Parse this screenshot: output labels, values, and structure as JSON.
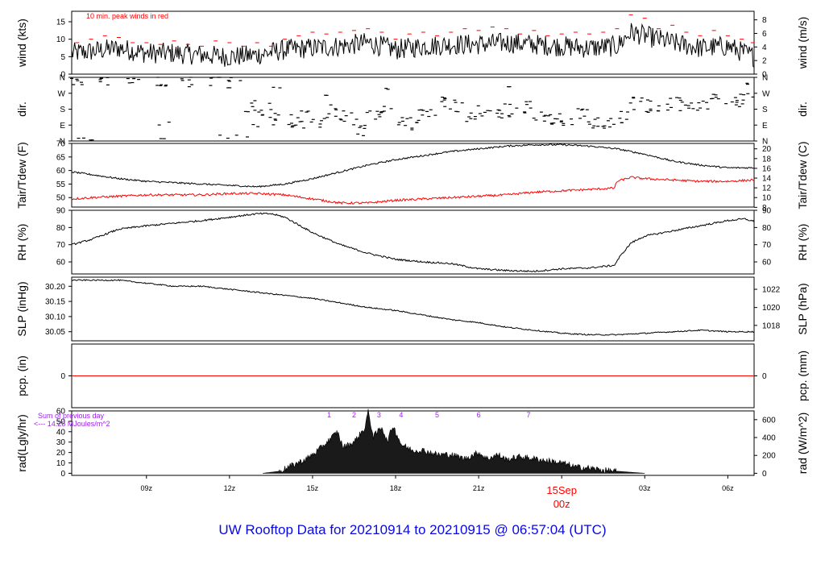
{
  "caption": "UW Rooftop Data for 20210914  to  20210915 @ 06:57:04  (UTC)",
  "colors": {
    "trace": "#000000",
    "peak": "#ff0000",
    "dew": "#ff0000",
    "purple": "#a020f0",
    "caption": "#0a0ae0"
  },
  "chart_data": {
    "type": "line",
    "x_unit": "hours UTC since 20210914 00z",
    "x_range": [
      6.3,
      30.95
    ],
    "x_ticks": [
      {
        "x": 9,
        "label": "09z"
      },
      {
        "x": 12,
        "label": "12z"
      },
      {
        "x": 15,
        "label": "15z"
      },
      {
        "x": 18,
        "label": "18z"
      },
      {
        "x": 21,
        "label": "21z"
      },
      {
        "x": 24,
        "label": "00z",
        "day_label": "15Sep"
      },
      {
        "x": 27,
        "label": "03z"
      },
      {
        "x": 30,
        "label": "06z"
      }
    ],
    "panels": [
      {
        "id": "wind",
        "ylabel": "wind (kts)",
        "ylabel_right": "wind (m/s)",
        "ylim": [
          0,
          18
        ],
        "yticks": [
          0,
          5,
          10,
          15
        ],
        "right_ticks": [
          {
            "v": 0,
            "label": "0"
          },
          {
            "v": 3.89,
            "label": "2"
          },
          {
            "v": 7.78,
            "label": "4"
          },
          {
            "v": 11.66,
            "label": "6"
          },
          {
            "v": 15.55,
            "label": "8"
          }
        ],
        "annotation": "10 min. peak winds in red",
        "series": [
          {
            "kind": "line",
            "color": "#000000",
            "x": [
              6.3,
              7,
              8,
              9,
              10,
              11,
              12,
              13,
              14,
              15,
              16,
              17,
              18,
              19,
              20,
              21,
              22,
              23,
              24,
              25,
              26,
              26.5,
              27,
              28,
              29,
              30,
              30.95
            ],
            "y": [
              6,
              6.5,
              7.5,
              6,
              6,
              5.5,
              5,
              5.5,
              7,
              7.5,
              8,
              9,
              7,
              8,
              8.5,
              8.5,
              9,
              8.5,
              8,
              7.5,
              8,
              12,
              11,
              9,
              7.5,
              8,
              5
            ],
            "noise": 3
          },
          {
            "kind": "dash",
            "color": "#ff0000",
            "name": "10 min. peak winds",
            "x": [
              6.5,
              7,
              7.5,
              8,
              8.5,
              9,
              9.5,
              10,
              10.5,
              11,
              11.5,
              12,
              12.5,
              13,
              13.5,
              14,
              14.5,
              15,
              15.5,
              16,
              16.5,
              17,
              17.5,
              18,
              18.5,
              19,
              19.5,
              20,
              20.5,
              21,
              21.5,
              22,
              22.5,
              23,
              23.5,
              24,
              24.5,
              25,
              25.5,
              26,
              26.5,
              27,
              27.5,
              28,
              28.5,
              29,
              29.5,
              30,
              30.5,
              30.9
            ],
            "y": [
              9,
              10,
              11,
              10.5,
              9,
              9,
              8.5,
              9.5,
              8.5,
              8,
              9.5,
              9,
              8,
              9,
              8,
              10,
              11,
              12,
              11.5,
              12,
              12.5,
              13,
              12,
              10,
              11.5,
              12,
              11,
              12,
              13,
              12.5,
              13.5,
              13,
              11.5,
              12.5,
              11,
              11.5,
              12,
              11.5,
              12,
              13,
              17,
              16,
              13,
              14,
              12,
              11,
              12.5,
              11,
              10,
              9
            ]
          }
        ]
      },
      {
        "id": "dir",
        "ylabel": "dir.",
        "ylabel_right": "dir.",
        "ylim": [
          0,
          360
        ],
        "yticks_labeled": [
          {
            "v": 0,
            "label": "N"
          },
          {
            "v": 90,
            "label": "E"
          },
          {
            "v": 180,
            "label": "S"
          },
          {
            "v": 270,
            "label": "W"
          },
          {
            "v": 360,
            "label": "N"
          }
        ],
        "series": [
          {
            "kind": "scatter",
            "color": "#000000",
            "x": [
              6.5,
              7.5,
              8.5,
              9.5,
              10.5,
              11.5,
              12.2,
              12.8,
              13.3,
              13.7,
              14.2,
              14.7,
              15.2,
              15.7,
              16.2,
              16.7,
              17.2,
              17.7,
              18.2,
              18.7,
              19.2,
              19.7,
              20.2,
              20.7,
              21.2,
              21.7,
              22.2,
              22.7,
              23.2,
              23.7,
              24.2,
              24.7,
              25.2,
              25.7,
              26.2,
              26.7,
              27.2,
              27.7,
              28.2,
              28.7,
              29.2,
              29.7,
              30.2,
              30.7
            ],
            "y": [
              350,
              355,
              345,
              350,
              345,
              350,
              340,
              200,
              180,
              120,
              110,
              135,
              100,
              170,
              150,
              110,
              130,
              160,
              95,
              140,
              170,
              230,
              205,
              125,
              165,
              150,
              175,
              190,
              150,
              135,
              110,
              145,
              100,
              90,
              130,
              210,
              200,
              205,
              210,
              200,
              215,
              230,
              220,
              235
            ],
            "noise": 40
          },
          {
            "kind": "scatter",
            "color": "#000000",
            "x": [
              6.6,
              7.2,
              9.5,
              9.7,
              11.8,
              12.5,
              13.1,
              13.6,
              14.5,
              15.5,
              16.8,
              17.8,
              18.6,
              22.3,
              23.6,
              25.4,
              30.5
            ],
            "y": [
              10,
              15,
              20,
              100,
              25,
              30,
              90,
              310,
              70,
              260,
              40,
              300,
              70,
              300,
              130,
              80,
              320
            ],
            "noise": 10
          }
        ]
      },
      {
        "id": "temp",
        "ylabel": "Tair/Tdew (F)",
        "ylabel_right": "Tair/Tdew (C)",
        "ylim": [
          46.5,
          70
        ],
        "yticks": [
          50,
          55,
          60,
          65,
          70
        ],
        "right_ticks": [
          {
            "v": 46.4,
            "label": "8"
          },
          {
            "v": 50,
            "label": "10"
          },
          {
            "v": 53.6,
            "label": "12"
          },
          {
            "v": 57.2,
            "label": "14"
          },
          {
            "v": 60.8,
            "label": "16"
          },
          {
            "v": 64.4,
            "label": "18"
          },
          {
            "v": 68,
            "label": "20"
          }
        ],
        "series": [
          {
            "kind": "line",
            "color": "#000000",
            "name": "Tair",
            "x": [
              6.3,
              7,
              8,
              9,
              10,
              11,
              12,
              13,
              14,
              15,
              16,
              17,
              18,
              19,
              20,
              21,
              22,
              23,
              24,
              25,
              26,
              27,
              28,
              29,
              30,
              30.95
            ],
            "y": [
              59.5,
              58.5,
              57,
              56,
              55.5,
              55,
              54.5,
              54,
              55,
              57,
              59.5,
              62,
              64,
              65.5,
              67,
              68,
              69,
              69.5,
              69.5,
              69,
              68,
              66,
              63.5,
              62,
              61,
              61
            ],
            "noise": 0.3
          },
          {
            "kind": "line",
            "color": "#ff0000",
            "name": "Tdew",
            "x": [
              6.3,
              7,
              8,
              9,
              10,
              11,
              12,
              13,
              14,
              15,
              16,
              17,
              18,
              19,
              20,
              21,
              22,
              23,
              24,
              25,
              25.9,
              26,
              26.5,
              27,
              28,
              29,
              30,
              30.95
            ],
            "y": [
              49.5,
              50,
              50.5,
              51,
              51,
              51,
              51.5,
              51.5,
              51,
              49.5,
              48,
              48,
              49,
              49.5,
              50,
              50.5,
              51,
              52,
              52.5,
              53,
              53.5,
              56,
              57.5,
              57,
              56.5,
              56,
              56,
              56.5
            ],
            "noise": 0.4
          }
        ]
      },
      {
        "id": "rh",
        "ylabel": "RH (%)",
        "ylabel_right": "RH (%)",
        "ylim": [
          53,
          90
        ],
        "yticks": [
          60,
          70,
          80,
          90
        ],
        "right_ticks": [
          {
            "v": 60,
            "label": "60"
          },
          {
            "v": 70,
            "label": "70"
          },
          {
            "v": 80,
            "label": "80"
          },
          {
            "v": 90,
            "label": "90"
          }
        ],
        "series": [
          {
            "kind": "line",
            "color": "#000000",
            "x": [
              6.3,
              7,
              8,
              9,
              10,
              11,
              12,
              13,
              13.5,
              14,
              15,
              16,
              17,
              18,
              19,
              20,
              21,
              22,
              23,
              24,
              25,
              25.9,
              26.1,
              26.5,
              27,
              28,
              29,
              30,
              30.6,
              30.95
            ],
            "y": [
              70,
              73,
              79,
              81,
              82.5,
              84,
              86,
              88,
              88,
              86,
              77,
              70,
              65,
              61.5,
              60,
              59,
              56,
              55,
              54.5,
              56,
              56.5,
              58,
              63,
              71,
              75,
              78,
              81,
              84,
              85,
              83.5
            ],
            "noise": 0.5
          }
        ]
      },
      {
        "id": "slp",
        "ylabel": "SLP (inHg)",
        "ylabel_right": "SLP (hPa)",
        "ylim": [
          30.02,
          30.23
        ],
        "yticks": [
          30.05,
          30.1,
          30.15,
          30.2
        ],
        "right_ticks": [
          {
            "v": 30.0709,
            "label": "1018"
          },
          {
            "v": 30.1299,
            "label": "1020"
          },
          {
            "v": 30.19,
            "label": "1022"
          }
        ],
        "series": [
          {
            "kind": "line",
            "color": "#000000",
            "x": [
              6.3,
              7,
              8,
              9,
              10,
              11,
              12,
              13,
              14,
              15,
              16,
              17,
              18,
              19,
              20,
              21,
              22,
              23,
              24,
              25,
              26,
              27,
              28,
              29,
              30,
              30.95
            ],
            "y": [
              30.22,
              30.22,
              30.22,
              30.21,
              30.2,
              30.2,
              30.19,
              30.18,
              30.17,
              30.16,
              30.145,
              30.13,
              30.12,
              30.105,
              30.09,
              30.08,
              30.065,
              30.055,
              30.045,
              30.04,
              30.04,
              30.045,
              30.05,
              30.055,
              30.05,
              30.05
            ],
            "noise": 0.002
          }
        ]
      },
      {
        "id": "pcp",
        "ylabel": "pcp. (in)",
        "ylabel_right": "pcp. (mm)",
        "ylim": [
          -0.5,
          0.5
        ],
        "yticks": [
          0
        ],
        "right_ticks": [
          {
            "v": 0,
            "label": "0"
          }
        ],
        "series": [
          {
            "kind": "line",
            "color": "#ff0000",
            "x": [
              6.3,
              30.95
            ],
            "y": [
              0,
              0
            ]
          }
        ]
      },
      {
        "id": "rad",
        "ylabel": "rad(Lgly/hr)",
        "ylabel_right": "rad (W/m^2)",
        "ylim": [
          -2,
          60
        ],
        "yticks": [
          0,
          10,
          20,
          30,
          40,
          50,
          60
        ],
        "right_ticks": [
          {
            "v": 0,
            "label": "0"
          },
          {
            "v": 17.2,
            "label": "200"
          },
          {
            "v": 34.4,
            "label": "400"
          },
          {
            "v": 51.6,
            "label": "600"
          }
        ],
        "annotation_lines": [
          "Sum of previous day",
          "<--- 14.26 MJoules/m^2"
        ],
        "hour_labels": [
          {
            "x": 15.6,
            "label": "1"
          },
          {
            "x": 16.5,
            "label": "2"
          },
          {
            "x": 17.4,
            "label": "3"
          },
          {
            "x": 18.2,
            "label": "4"
          },
          {
            "x": 19.5,
            "label": "5"
          },
          {
            "x": 21.0,
            "label": "6"
          },
          {
            "x": 22.8,
            "label": "7"
          }
        ],
        "series": [
          {
            "kind": "area",
            "color": "#000000",
            "x": [
              13.2,
              13.8,
              14.3,
              14.8,
              15.2,
              15.6,
              15.9,
              16.1,
              16.5,
              16.9,
              17.0,
              17.2,
              17.5,
              17.7,
              17.9,
              18.2,
              18.6,
              19.0,
              19.5,
              20.0,
              20.5,
              21.0,
              21.3,
              21.7,
              22.0,
              22.5,
              23.0,
              23.5,
              24.0,
              24.5,
              25.0,
              25.5,
              26.0,
              26.5,
              27.0
            ],
            "y": [
              0,
              2,
              8,
              14,
              22,
              32,
              40,
              25,
              30,
              44,
              60,
              35,
              45,
              30,
              46,
              28,
              22,
              22,
              18,
              18,
              14,
              20,
              14,
              18,
              13,
              16,
              14,
              12,
              10,
              6,
              5,
              3,
              2,
              1,
              0
            ],
            "noise": 3
          }
        ]
      }
    ]
  }
}
